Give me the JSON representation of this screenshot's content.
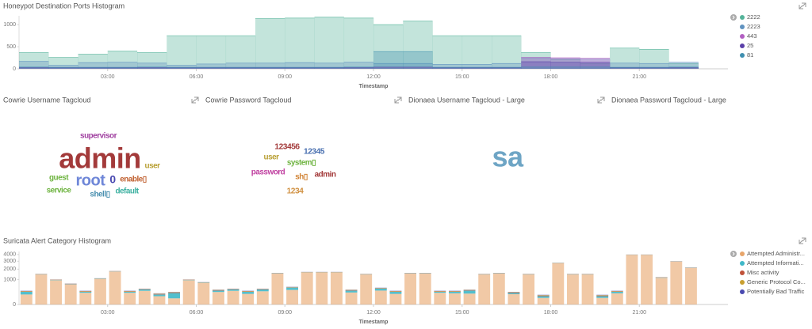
{
  "chart_data": [
    {
      "type": "area",
      "title": "Honeypot Destination Ports Histogram",
      "x_label": "Timestamp",
      "x": [
        0,
        1,
        2,
        3,
        4,
        5,
        6,
        7,
        8,
        9,
        10,
        11,
        12,
        13,
        14,
        15,
        16,
        17,
        18,
        19,
        20,
        21,
        22
      ],
      "xlim": [
        0,
        24
      ],
      "xticks": [
        {
          "value": 3,
          "label": "03:00"
        },
        {
          "value": 6,
          "label": "06:00"
        },
        {
          "value": 9,
          "label": "09:00"
        },
        {
          "value": 12,
          "label": "12:00"
        },
        {
          "value": 15,
          "label": "15:00"
        },
        {
          "value": 18,
          "label": "18:00"
        },
        {
          "value": 21,
          "label": "21:00"
        }
      ],
      "ylim": [
        0,
        1200
      ],
      "yticks": [
        0,
        500,
        1000
      ],
      "legend": "right",
      "series": [
        {
          "name": "2222",
          "color": "#54b399",
          "values": [
            370,
            260,
            330,
            400,
            370,
            750,
            750,
            750,
            1140,
            1150,
            1170,
            1150,
            1000,
            1080,
            750,
            750,
            750,
            370,
            210,
            120,
            470,
            440,
            120
          ]
        },
        {
          "name": "2223",
          "color": "#6092c0",
          "values": [
            170,
            80,
            140,
            150,
            130,
            80,
            110,
            130,
            130,
            140,
            130,
            150,
            120,
            120,
            100,
            100,
            120,
            250,
            230,
            220,
            130,
            120,
            150
          ]
        },
        {
          "name": "443",
          "color": "#b25fc2",
          "values": [
            20,
            20,
            20,
            20,
            20,
            20,
            20,
            20,
            20,
            20,
            20,
            20,
            30,
            30,
            20,
            20,
            20,
            260,
            250,
            240,
            20,
            20,
            20
          ]
        },
        {
          "name": "25",
          "color": "#5a3fa8",
          "values": [
            30,
            30,
            30,
            30,
            30,
            30,
            30,
            30,
            30,
            30,
            30,
            30,
            40,
            40,
            30,
            30,
            30,
            160,
            150,
            150,
            30,
            30,
            30
          ]
        },
        {
          "name": "81",
          "color": "#3f8fb0",
          "values": [
            40,
            30,
            30,
            30,
            40,
            30,
            30,
            30,
            30,
            30,
            30,
            40,
            390,
            390,
            30,
            30,
            30,
            40,
            40,
            40,
            30,
            30,
            40
          ]
        }
      ]
    },
    {
      "type": "tagcloud",
      "title": "Cowrie Username Tagcloud",
      "categories": [
        "supervisor",
        "admin",
        "user",
        "guest",
        "root",
        "0",
        "enable▯",
        "service",
        "shell▯",
        "default"
      ],
      "values": [
        7,
        100,
        7,
        7,
        43,
        21,
        7,
        7,
        7,
        7
      ],
      "colors": [
        "#a040a0",
        "#a33a3a",
        "#b9a034",
        "#6db33f",
        "#6f87d8",
        "#4848b0",
        "#c06030",
        "#6db33f",
        "#4a90b0",
        "#3cb0a0"
      ]
    },
    {
      "type": "tagcloud",
      "title": "Cowrie Password Tagcloud",
      "categories": [
        "123456",
        "12345",
        "user",
        "system▯",
        "password",
        "sh▯",
        "admin",
        "1234"
      ],
      "values": [
        8,
        8,
        7,
        7,
        7,
        7,
        7,
        8
      ],
      "colors": [
        "#a33a3a",
        "#4a70b0",
        "#b9a034",
        "#6db33f",
        "#c040a0",
        "#d08030",
        "#a33a3a",
        "#d09040"
      ]
    },
    {
      "type": "tagcloud",
      "title": "Dionaea Username Tagcloud - Large",
      "categories": [],
      "values": [],
      "colors": []
    },
    {
      "type": "tagcloud",
      "title": "Dionaea Password Tagcloud - Large",
      "categories": [
        "sa"
      ],
      "values": [
        100
      ],
      "colors": [
        "#6ea5c5"
      ]
    },
    {
      "type": "bar",
      "stacked": true,
      "scale": "sqrt",
      "title": "Suricata Alert Category Histogram",
      "x_label": "Timestamp",
      "x": [
        0,
        0.5,
        1,
        1.5,
        2,
        2.5,
        3,
        3.5,
        4,
        4.5,
        5,
        5.5,
        6,
        6.5,
        7,
        7.5,
        8,
        8.5,
        9,
        9.5,
        10,
        10.5,
        11,
        11.5,
        12,
        12.5,
        13,
        13.5,
        14,
        14.5,
        15,
        15.5,
        16,
        16.5,
        17,
        17.5,
        18,
        18.5,
        19,
        19.5,
        20,
        20.5,
        21,
        21.5,
        22,
        22.5
      ],
      "xlim": [
        0,
        24
      ],
      "xticks": [
        {
          "value": 3,
          "label": "03:00"
        },
        {
          "value": 6,
          "label": "06:00"
        },
        {
          "value": 9,
          "label": "09:00"
        },
        {
          "value": 12,
          "label": "12:00"
        },
        {
          "value": 15,
          "label": "15:00"
        },
        {
          "value": 18,
          "label": "18:00"
        },
        {
          "value": 21,
          "label": "21:00"
        }
      ],
      "ylim": [
        0,
        4500
      ],
      "yticks": [
        0,
        1000,
        2000,
        3000,
        4000
      ],
      "legend": "right",
      "series": [
        {
          "name": "Attempted Administr...",
          "color": "#e7a56b",
          "values": [
            160,
            1440,
            940,
            640,
            220,
            1040,
            1740,
            220,
            300,
            110,
            60,
            940,
            740,
            250,
            300,
            180,
            280,
            1540,
            340,
            1640,
            1640,
            1640,
            230,
            1440,
            310,
            180,
            1540,
            1540,
            220,
            200,
            190,
            1440,
            1540,
            170,
            1440,
            70,
            2740,
            1440,
            1440,
            70,
            200,
            3940,
            3940,
            1140,
            2940,
            2140
          ]
        },
        {
          "name": "Attempted Informati...",
          "color": "#3fb8c8",
          "values": [
            100,
            20,
            20,
            20,
            40,
            20,
            20,
            40,
            60,
            50,
            150,
            20,
            20,
            60,
            60,
            80,
            80,
            20,
            120,
            20,
            20,
            20,
            80,
            20,
            100,
            80,
            20,
            20,
            40,
            60,
            120,
            20,
            20,
            40,
            20,
            40,
            20,
            20,
            20,
            40,
            60,
            20,
            20,
            20,
            20,
            20
          ]
        },
        {
          "name": "Misc activity",
          "color": "#c0523a",
          "values": [
            15,
            15,
            15,
            15,
            15,
            15,
            15,
            15,
            15,
            15,
            15,
            15,
            15,
            15,
            15,
            15,
            15,
            15,
            15,
            15,
            15,
            15,
            15,
            15,
            15,
            15,
            15,
            15,
            15,
            15,
            15,
            15,
            15,
            15,
            15,
            15,
            15,
            15,
            15,
            15,
            15,
            15,
            15,
            15,
            15,
            15
          ]
        },
        {
          "name": "Generic Protocol Co...",
          "color": "#c9a030",
          "values": [
            15,
            15,
            15,
            15,
            15,
            15,
            15,
            15,
            15,
            15,
            15,
            15,
            15,
            15,
            15,
            15,
            15,
            15,
            15,
            15,
            15,
            15,
            15,
            15,
            15,
            15,
            15,
            15,
            15,
            15,
            15,
            15,
            15,
            15,
            15,
            15,
            15,
            15,
            15,
            15,
            15,
            15,
            15,
            15,
            15,
            15
          ]
        },
        {
          "name": "Potentially Bad Traffic",
          "color": "#4a4ab0",
          "values": [
            10,
            10,
            10,
            10,
            10,
            10,
            10,
            10,
            10,
            10,
            10,
            10,
            10,
            10,
            10,
            10,
            10,
            10,
            10,
            10,
            10,
            10,
            10,
            10,
            10,
            10,
            10,
            10,
            10,
            10,
            10,
            10,
            10,
            10,
            10,
            10,
            10,
            10,
            10,
            10,
            10,
            10,
            10,
            10,
            10,
            10
          ]
        }
      ]
    }
  ]
}
